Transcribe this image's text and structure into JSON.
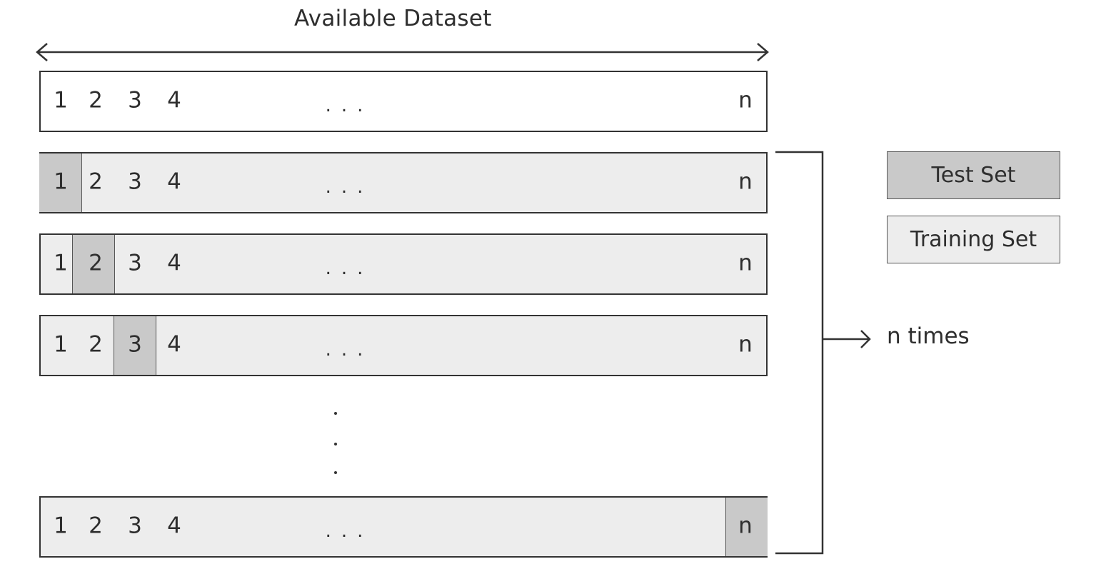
{
  "title": "Available Dataset",
  "cell_labels": [
    "1",
    "2",
    "3",
    "4"
  ],
  "last_label": "n",
  "ellipsis": "...",
  "rows": [
    {
      "test_index": null
    },
    {
      "test_index": 1
    },
    {
      "test_index": 2
    },
    {
      "test_index": 3
    },
    {
      "test_index": "n"
    }
  ],
  "legend": {
    "test": "Test Set",
    "training": "Training Set"
  },
  "repeat_label": "n times",
  "colors": {
    "test": "#c9c9c9",
    "training": "#ededed",
    "stroke": "#333333"
  }
}
